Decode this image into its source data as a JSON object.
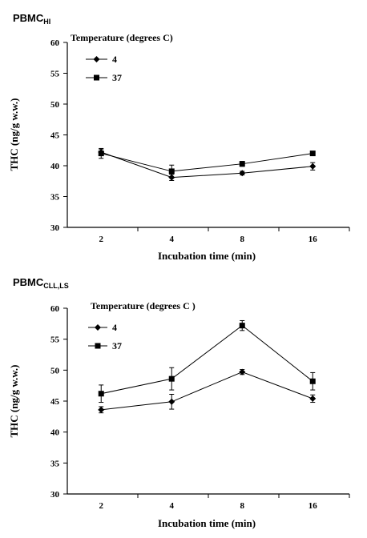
{
  "chart_data": [
    {
      "type": "line",
      "title_main": "PBMC",
      "title_sub": "HI",
      "xlabel": "Incubation time (min)",
      "ylabel": "THC (ng/g w.w.)",
      "categories": [
        "2",
        "4",
        "8",
        "16"
      ],
      "ylim": [
        30,
        60
      ],
      "yticks": [
        30,
        35,
        40,
        45,
        50,
        55,
        60
      ],
      "legend_title": "Temperature (degrees C)",
      "legend_placement": "top-left",
      "grid": false,
      "series": [
        {
          "name": "4",
          "marker": "diamond",
          "values": [
            42.2,
            38.1,
            38.8,
            39.9
          ],
          "errors": [
            0.5,
            0.5,
            0.3,
            0.6
          ]
        },
        {
          "name": "37",
          "marker": "square",
          "values": [
            42.0,
            39.1,
            40.3,
            42.0
          ],
          "errors": [
            0.8,
            1.0,
            0.4,
            0.3
          ]
        }
      ]
    },
    {
      "type": "line",
      "title_main": "PBMC",
      "title_sub": "CLL,LS",
      "xlabel": "Incubation time (min)",
      "ylabel": "THC (ng/g w.w.)",
      "categories": [
        "2",
        "4",
        "8",
        "16"
      ],
      "ylim": [
        30,
        60
      ],
      "yticks": [
        30,
        35,
        40,
        45,
        50,
        55,
        60
      ],
      "legend_title": "Temperature (degrees C )",
      "legend_placement": "top-left",
      "grid": false,
      "series": [
        {
          "name": "4",
          "marker": "diamond",
          "values": [
            43.6,
            44.9,
            49.7,
            45.4
          ],
          "errors": [
            0.5,
            1.2,
            0.4,
            0.6
          ]
        },
        {
          "name": "37",
          "marker": "square",
          "values": [
            46.2,
            48.6,
            57.2,
            48.2
          ],
          "errors": [
            1.4,
            1.8,
            0.8,
            1.4
          ]
        }
      ]
    }
  ]
}
